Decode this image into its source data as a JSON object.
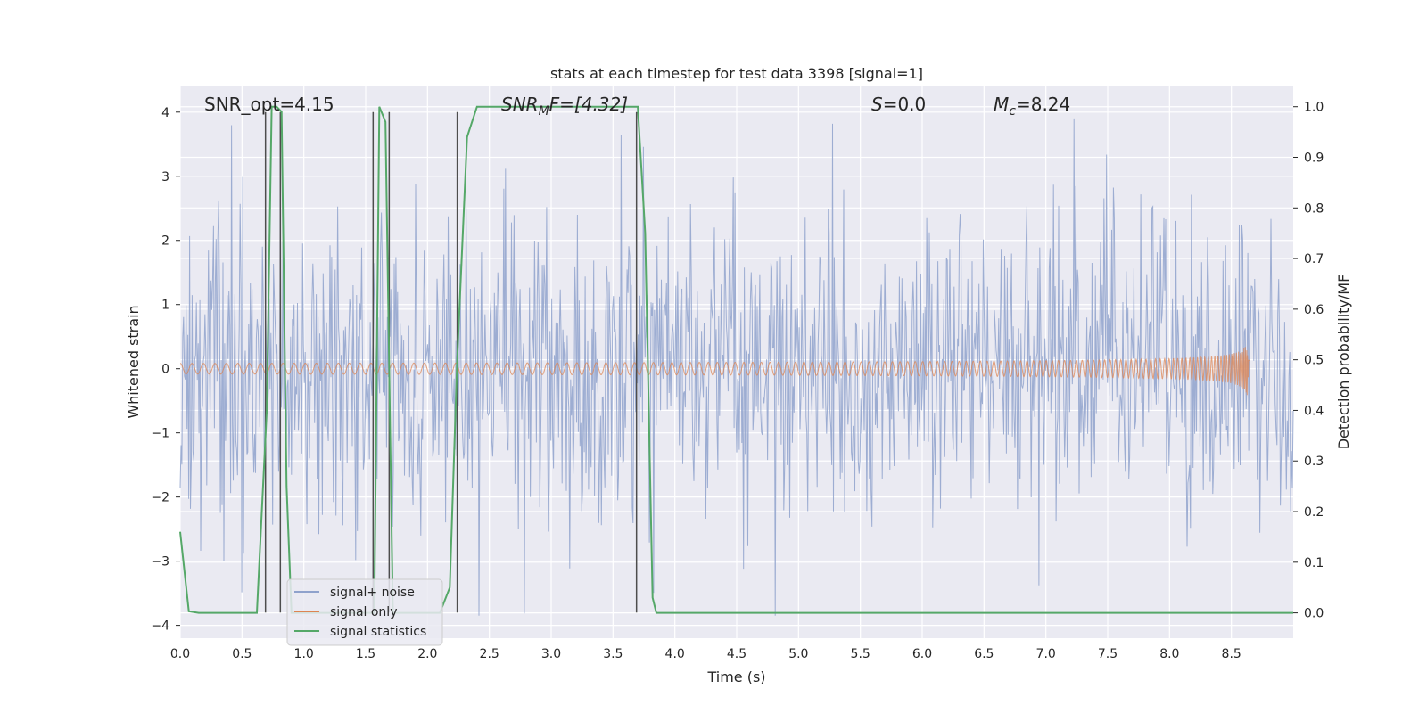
{
  "chart_data": {
    "type": "line",
    "title": "stats at each timestep for test data 3398 [signal=1]",
    "xlabel": "Time (s)",
    "ylabel_left": "Whitened strain",
    "ylabel_right": "Detection probability/MF",
    "xlim": [
      0.0,
      9.0
    ],
    "ylim_left": [
      -4.2,
      4.4
    ],
    "ylim_right": [
      -0.05,
      1.04
    ],
    "grid": true,
    "legend_position": "lower-left",
    "x_ticks": [
      "0.0",
      "0.5",
      "1.0",
      "1.5",
      "2.0",
      "2.5",
      "3.0",
      "3.5",
      "4.0",
      "4.5",
      "5.0",
      "5.5",
      "6.0",
      "6.5",
      "7.0",
      "7.5",
      "8.0",
      "8.5"
    ],
    "y_ticks_left": [
      "−4",
      "−3",
      "−2",
      "−1",
      "0",
      "1",
      "2",
      "3",
      "4"
    ],
    "y_ticks_right": [
      "0.0",
      "0.1",
      "0.2",
      "0.3",
      "0.4",
      "0.5",
      "0.6",
      "0.7",
      "0.8",
      "0.9",
      "1.0"
    ],
    "annotations": {
      "snr_opt": "SNR_opt=4.15",
      "snr_mf_main": "SNR",
      "snr_mf_sub": "M",
      "snr_mf_rest": "F=[4.32]",
      "s_main": "S",
      "s_rest": "=0.0",
      "mc_main": "M",
      "mc_sub": "c",
      "mc_rest": "=8.24"
    },
    "series": [
      {
        "name": "signal+ noise",
        "color": "#8fa2cc",
        "kind": "noise",
        "x_range": [
          0.0,
          9.0
        ],
        "amplitude_std": 1.0,
        "peak_extremes": {
          "max": 4.0,
          "min": -3.85
        }
      },
      {
        "name": "signal only",
        "color": "#dd8452",
        "kind": "chirp",
        "x_range": [
          0.0,
          8.65
        ],
        "peak_amplitude": 0.55,
        "merger_time": 8.64
      },
      {
        "name": "signal statistics",
        "color": "#55a868",
        "axis": "right",
        "x": [
          0.0,
          0.07,
          0.15,
          0.25,
          0.35,
          0.45,
          0.55,
          0.62,
          0.7,
          0.74,
          0.78,
          0.82,
          0.86,
          0.9,
          1.0,
          1.2,
          1.4,
          1.5,
          1.57,
          1.61,
          1.66,
          1.72,
          1.78,
          1.85,
          2.0,
          2.1,
          2.18,
          2.24,
          2.32,
          2.4,
          2.6,
          3.0,
          3.4,
          3.6,
          3.7,
          3.76,
          3.82,
          3.85,
          3.9,
          4.2,
          4.6,
          5.0,
          6.0,
          7.0,
          8.0,
          9.0
        ],
        "y": [
          0.16,
          0.003,
          0.0,
          0.0,
          0.0,
          0.0,
          0.0,
          0.0,
          0.4,
          1.0,
          1.0,
          0.99,
          0.25,
          0.0,
          0.0,
          0.0,
          0.0,
          0.0,
          0.0,
          1.0,
          0.97,
          0.0,
          0.0,
          0.0,
          0.0,
          0.0,
          0.05,
          0.5,
          0.94,
          1.0,
          1.0,
          1.0,
          1.0,
          1.0,
          1.0,
          0.75,
          0.03,
          0.0,
          0.0,
          0.0,
          0.0,
          0.0,
          0.0,
          0.0,
          0.0,
          0.0
        ]
      }
    ],
    "vertical_markers": {
      "color": "#4d4d4d",
      "x": [
        0.69,
        0.81,
        1.56,
        1.69,
        2.24,
        3.69
      ],
      "y_range_left": [
        -3.8,
        4.0
      ]
    }
  },
  "legend": [
    {
      "label": "signal+ noise",
      "color": "#8fa2cc"
    },
    {
      "label": "signal only",
      "color": "#dd8452"
    },
    {
      "label": "signal statistics",
      "color": "#55a868"
    }
  ]
}
